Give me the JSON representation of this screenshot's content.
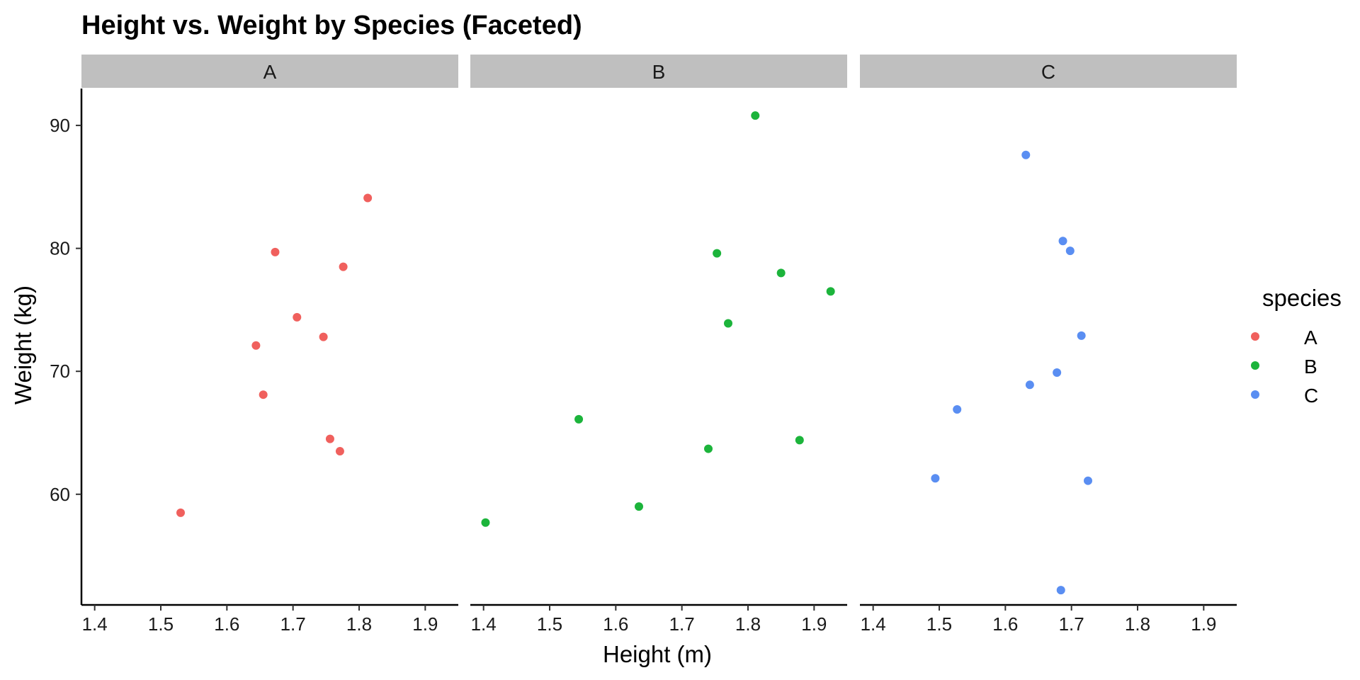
{
  "chart_data": {
    "type": "scatter",
    "title": "Height vs. Weight by Species (Faceted)",
    "xlabel": "Height (m)",
    "ylabel": "Weight (kg)",
    "xlim": [
      1.38,
      1.95
    ],
    "ylim": [
      51.0,
      93.0
    ],
    "x_ticks": [
      1.4,
      1.5,
      1.6,
      1.7,
      1.8,
      1.9
    ],
    "x_tick_labels": [
      "1.4",
      "1.5",
      "1.6",
      "1.7",
      "1.8",
      "1.9"
    ],
    "y_ticks": [
      60,
      70,
      80,
      90
    ],
    "y_tick_labels": [
      "60",
      "70",
      "80",
      "90"
    ],
    "grid": false,
    "legend": {
      "title": "species",
      "position": "right",
      "entries": [
        "A",
        "B",
        "C"
      ]
    },
    "facets": [
      {
        "label": "A",
        "color": "#F0605D",
        "points": [
          {
            "x": 1.53,
            "y": 58.5
          },
          {
            "x": 1.644,
            "y": 72.1
          },
          {
            "x": 1.655,
            "y": 68.1
          },
          {
            "x": 1.673,
            "y": 79.7
          },
          {
            "x": 1.706,
            "y": 74.4
          },
          {
            "x": 1.746,
            "y": 72.8
          },
          {
            "x": 1.756,
            "y": 64.5
          },
          {
            "x": 1.771,
            "y": 63.5
          },
          {
            "x": 1.776,
            "y": 78.5
          },
          {
            "x": 1.813,
            "y": 84.1
          }
        ]
      },
      {
        "label": "B",
        "color": "#1CB43B",
        "points": [
          {
            "x": 1.403,
            "y": 57.7
          },
          {
            "x": 1.544,
            "y": 66.1
          },
          {
            "x": 1.635,
            "y": 59.0
          },
          {
            "x": 1.74,
            "y": 63.7
          },
          {
            "x": 1.753,
            "y": 79.6
          },
          {
            "x": 1.77,
            "y": 73.9
          },
          {
            "x": 1.811,
            "y": 90.8
          },
          {
            "x": 1.85,
            "y": 78.0
          },
          {
            "x": 1.878,
            "y": 64.4
          },
          {
            "x": 1.925,
            "y": 76.5
          }
        ]
      },
      {
        "label": "C",
        "color": "#5A8EF2",
        "points": [
          {
            "x": 1.494,
            "y": 61.3
          },
          {
            "x": 1.527,
            "y": 66.9
          },
          {
            "x": 1.631,
            "y": 87.6
          },
          {
            "x": 1.637,
            "y": 68.9
          },
          {
            "x": 1.678,
            "y": 69.9
          },
          {
            "x": 1.684,
            "y": 52.2
          },
          {
            "x": 1.687,
            "y": 80.6
          },
          {
            "x": 1.698,
            "y": 79.8
          },
          {
            "x": 1.715,
            "y": 72.9
          },
          {
            "x": 1.725,
            "y": 61.1
          }
        ]
      }
    ]
  }
}
